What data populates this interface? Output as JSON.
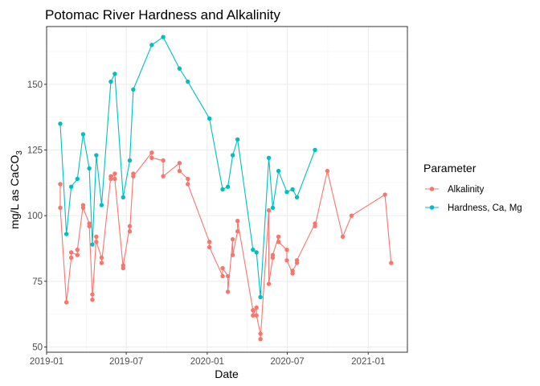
{
  "chart_data": {
    "type": "line",
    "title": "Potomac River Hardness and Alkalinity",
    "xlabel": "Date",
    "ylabel_main": "mg/L as CaCO",
    "ylabel_sub": "3",
    "xlim": [
      "2019-01-01",
      "2021-03-31"
    ],
    "ylim": [
      48,
      172
    ],
    "x_ticks": [
      {
        "date": "2019-01-01",
        "label": "2019-01"
      },
      {
        "date": "2019-07-01",
        "label": "2019-07"
      },
      {
        "date": "2020-01-01",
        "label": "2020-01"
      },
      {
        "date": "2020-07-01",
        "label": "2020-07"
      },
      {
        "date": "2021-01-01",
        "label": "2021-01"
      }
    ],
    "y_ticks": [
      50,
      75,
      100,
      125,
      150
    ],
    "grid": true,
    "legend": {
      "title": "Parameter",
      "position": "right"
    },
    "series": [
      {
        "name": "Alkalinity",
        "color": "#F8766D",
        "points": [
          [
            "2019-02-01",
            112
          ],
          [
            "2019-02-01",
            103
          ],
          [
            "2019-02-15",
            67
          ],
          [
            "2019-02-26",
            84
          ],
          [
            "2019-02-26",
            86
          ],
          [
            "2019-03-12",
            85
          ],
          [
            "2019-03-12",
            87
          ],
          [
            "2019-03-25",
            104
          ],
          [
            "2019-03-25",
            103
          ],
          [
            "2019-04-08",
            97
          ],
          [
            "2019-04-08",
            96
          ],
          [
            "2019-04-15",
            70
          ],
          [
            "2019-04-15",
            68
          ],
          [
            "2019-04-24",
            92
          ],
          [
            "2019-04-24",
            90
          ],
          [
            "2019-05-06",
            84
          ],
          [
            "2019-05-06",
            82
          ],
          [
            "2019-05-27",
            115
          ],
          [
            "2019-05-27",
            114
          ],
          [
            "2019-06-05",
            116
          ],
          [
            "2019-06-05",
            114
          ],
          [
            "2019-06-24",
            80
          ],
          [
            "2019-06-24",
            81
          ],
          [
            "2019-07-09",
            96
          ],
          [
            "2019-07-09",
            94
          ],
          [
            "2019-07-17",
            116
          ],
          [
            "2019-07-17",
            115
          ],
          [
            "2019-08-28",
            124
          ],
          [
            "2019-08-28",
            122
          ],
          [
            "2019-09-23",
            121
          ],
          [
            "2019-09-23",
            115
          ],
          [
            "2019-10-30",
            120
          ],
          [
            "2019-10-30",
            117
          ],
          [
            "2019-11-18",
            114
          ],
          [
            "2019-11-18",
            112
          ],
          [
            "2020-01-06",
            90
          ],
          [
            "2020-01-06",
            88
          ],
          [
            "2020-02-05",
            77
          ],
          [
            "2020-02-05",
            80
          ],
          [
            "2020-02-17",
            77
          ],
          [
            "2020-02-17",
            71
          ],
          [
            "2020-02-28",
            91
          ],
          [
            "2020-02-28",
            85
          ],
          [
            "2020-03-10",
            94
          ],
          [
            "2020-03-10",
            98
          ],
          [
            "2020-04-14",
            64
          ],
          [
            "2020-04-14",
            62
          ],
          [
            "2020-04-22",
            65
          ],
          [
            "2020-04-22",
            62
          ],
          [
            "2020-05-01",
            55
          ],
          [
            "2020-05-01",
            53
          ],
          [
            "2020-05-20",
            102
          ],
          [
            "2020-05-20",
            74
          ],
          [
            "2020-05-29",
            84
          ],
          [
            "2020-05-29",
            85
          ],
          [
            "2020-06-11",
            92
          ],
          [
            "2020-06-11",
            90
          ],
          [
            "2020-06-30",
            87
          ],
          [
            "2020-06-30",
            83
          ],
          [
            "2020-07-13",
            78
          ],
          [
            "2020-07-13",
            79
          ],
          [
            "2020-07-23",
            82
          ],
          [
            "2020-07-23",
            83
          ],
          [
            "2020-09-02",
            97
          ],
          [
            "2020-09-02",
            96
          ],
          [
            "2020-09-30",
            117
          ],
          [
            "2020-11-04",
            92
          ],
          [
            "2020-11-24",
            100
          ],
          [
            "2021-02-08",
            108
          ],
          [
            "2021-02-22",
            82
          ]
        ]
      },
      {
        "name": "Hardness, Ca, Mg",
        "color": "#00BFC4",
        "points": [
          [
            "2019-02-01",
            135
          ],
          [
            "2019-02-15",
            93
          ],
          [
            "2019-02-26",
            111
          ],
          [
            "2019-03-12",
            114
          ],
          [
            "2019-03-25",
            131
          ],
          [
            "2019-04-08",
            118
          ],
          [
            "2019-04-15",
            89
          ],
          [
            "2019-04-24",
            123
          ],
          [
            "2019-05-06",
            104
          ],
          [
            "2019-05-27",
            151
          ],
          [
            "2019-06-05",
            154
          ],
          [
            "2019-06-24",
            107
          ],
          [
            "2019-07-09",
            121
          ],
          [
            "2019-07-17",
            148
          ],
          [
            "2019-08-28",
            165
          ],
          [
            "2019-09-23",
            168
          ],
          [
            "2019-10-30",
            156
          ],
          [
            "2019-11-18",
            151
          ],
          [
            "2020-01-06",
            137
          ],
          [
            "2020-02-05",
            110
          ],
          [
            "2020-02-17",
            111
          ],
          [
            "2020-02-28",
            123
          ],
          [
            "2020-03-10",
            129
          ],
          [
            "2020-04-14",
            87
          ],
          [
            "2020-04-22",
            86
          ],
          [
            "2020-05-01",
            69
          ],
          [
            "2020-05-20",
            122
          ],
          [
            "2020-05-29",
            103
          ],
          [
            "2020-06-11",
            117
          ],
          [
            "2020-06-30",
            109
          ],
          [
            "2020-07-13",
            110
          ],
          [
            "2020-07-23",
            107
          ],
          [
            "2020-09-02",
            125
          ]
        ]
      }
    ]
  }
}
